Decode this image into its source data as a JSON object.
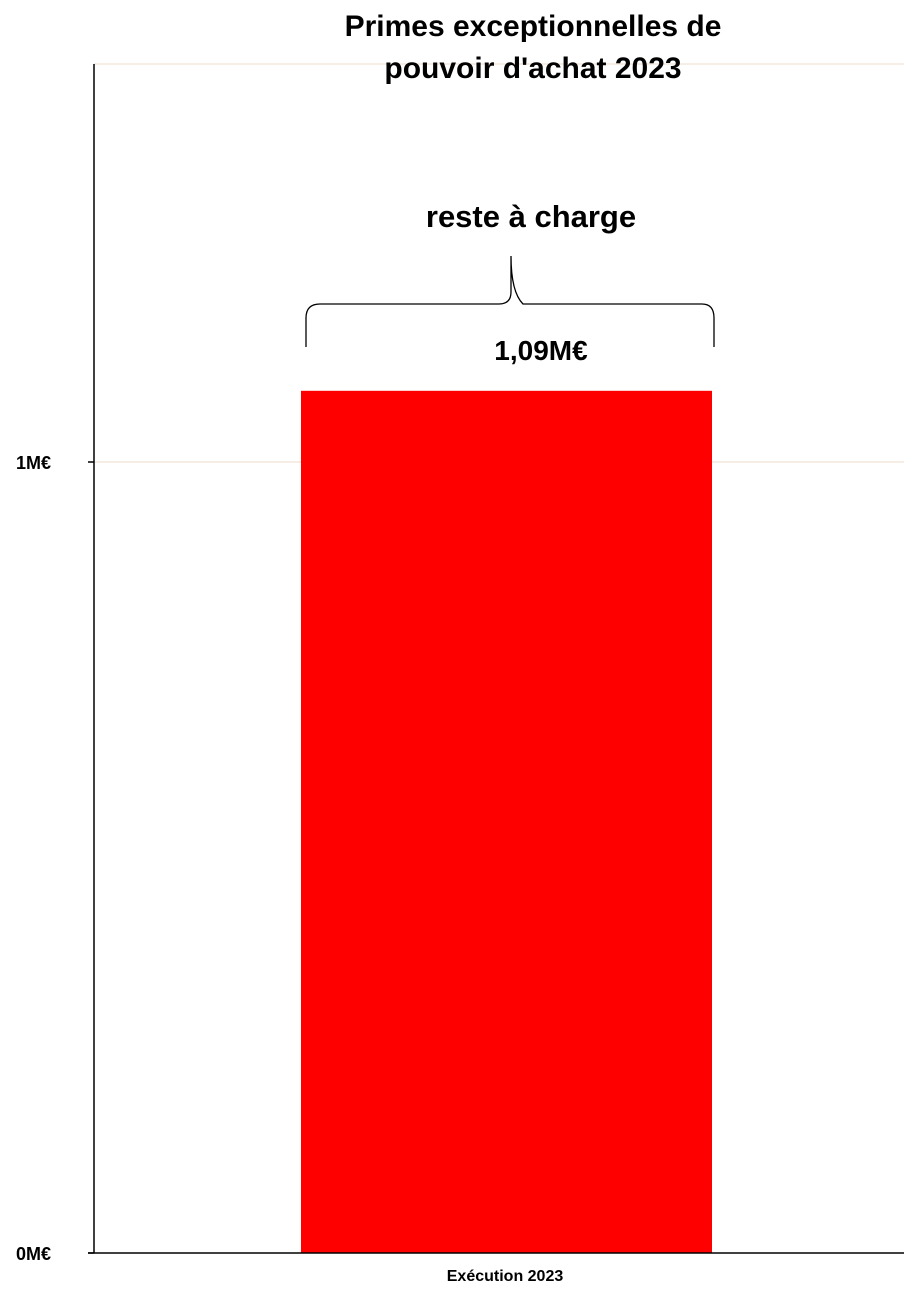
{
  "chart_data": {
    "type": "bar",
    "title_lines": [
      "Primes exceptionnelles de",
      "pouvoir d'achat 2023"
    ],
    "categories": [
      "Exécution 2023"
    ],
    "values": [
      1.09
    ],
    "value_labels": [
      "1,09M€"
    ],
    "bar_color": "#ff0000",
    "yticks": [
      {
        "value": 0,
        "label": "0M€"
      },
      {
        "value": 1,
        "label": "1M€"
      }
    ],
    "ylim": [
      0,
      1.5
    ],
    "grid": true,
    "gridline_color": "#ecdcc8",
    "annotation": {
      "text": "reste à charge",
      "kind": "brace"
    },
    "xlabel": "",
    "ylabel": ""
  }
}
